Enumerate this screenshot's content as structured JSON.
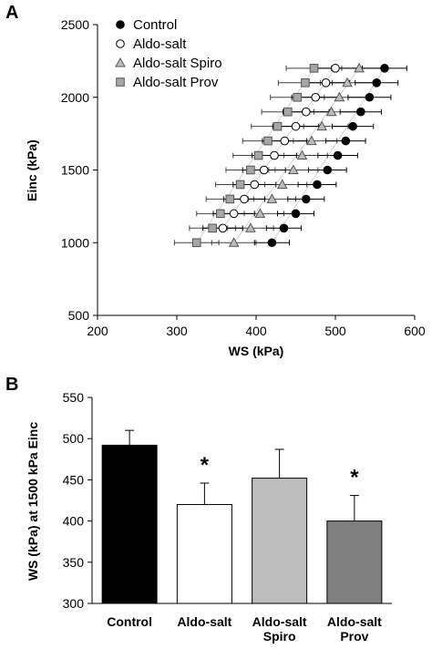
{
  "panel_a_label": "A",
  "panel_b_label": "B",
  "chart_data": [
    {
      "type": "scatter",
      "xlabel": "WS (kPa)",
      "ylabel": "Einc (kPa)",
      "xlim": [
        200,
        600
      ],
      "ylim": [
        500,
        2500
      ],
      "xticks": [
        "200",
        "300",
        "400",
        "500",
        "600"
      ],
      "yticks": [
        "500",
        "1000",
        "1500",
        "2000",
        "2500"
      ],
      "legend_position": "top-left",
      "x_error_bars": true,
      "series": [
        {
          "name": "Control",
          "marker": "filled-circle",
          "color": "#000000",
          "points": [
            [
              420,
              1000
            ],
            [
              435,
              1100
            ],
            [
              450,
              1200
            ],
            [
              463,
              1300
            ],
            [
              477,
              1400
            ],
            [
              490,
              1500
            ],
            [
              503,
              1600
            ],
            [
              513,
              1700
            ],
            [
              522,
              1800
            ],
            [
              532,
              1900
            ],
            [
              543,
              2000
            ],
            [
              552,
              2100
            ],
            [
              562,
              2200
            ]
          ],
          "x_error": [
            22,
            22,
            23,
            23,
            24,
            24,
            25,
            25,
            26,
            26,
            27,
            27,
            28
          ]
        },
        {
          "name": "Aldo-salt",
          "marker": "open-circle",
          "color": "#ffffff",
          "points": [
            [
              358,
              1100
            ],
            [
              372,
              1200
            ],
            [
              385,
              1300
            ],
            [
              398,
              1400
            ],
            [
              410,
              1500
            ],
            [
              423,
              1600
            ],
            [
              436,
              1700
            ],
            [
              450,
              1800
            ],
            [
              463,
              1900
            ],
            [
              475,
              2000
            ],
            [
              488,
              2100
            ],
            [
              500,
              2200
            ]
          ],
          "x_error": [
            25,
            26,
            26,
            27,
            27,
            28,
            28,
            29,
            29,
            30,
            30,
            31
          ]
        },
        {
          "name": "Aldo-salt Spiro",
          "marker": "triangle",
          "color": "#bcbcbc",
          "points": [
            [
              372,
              1000
            ],
            [
              393,
              1100
            ],
            [
              405,
              1200
            ],
            [
              420,
              1300
            ],
            [
              433,
              1400
            ],
            [
              447,
              1500
            ],
            [
              458,
              1600
            ],
            [
              470,
              1700
            ],
            [
              483,
              1800
            ],
            [
              495,
              1900
            ],
            [
              505,
              2000
            ],
            [
              515,
              2100
            ],
            [
              530,
              2200
            ]
          ],
          "x_error": [
            28,
            29,
            30,
            30,
            31,
            31,
            32,
            32,
            33,
            33,
            34,
            34,
            35
          ]
        },
        {
          "name": "Aldo-salt Prov",
          "marker": "square",
          "color": "#a6a6a6",
          "points": [
            [
              325,
              1000
            ],
            [
              345,
              1100
            ],
            [
              355,
              1200
            ],
            [
              367,
              1300
            ],
            [
              380,
              1400
            ],
            [
              393,
              1500
            ],
            [
              403,
              1600
            ],
            [
              415,
              1700
            ],
            [
              427,
              1800
            ],
            [
              440,
              1900
            ],
            [
              452,
              2000
            ],
            [
              462,
              2100
            ],
            [
              473,
              2200
            ]
          ],
          "x_error": [
            28,
            29,
            30,
            30,
            31,
            31,
            32,
            32,
            33,
            33,
            34,
            34,
            35
          ]
        }
      ]
    },
    {
      "type": "bar",
      "ylabel": "WS (kPa) at 1500 kPa Einc",
      "ylim": [
        300,
        550
      ],
      "yticks": [
        "300",
        "350",
        "400",
        "450",
        "500",
        "550"
      ],
      "categories": [
        "Control",
        "Aldo-salt",
        "Aldo-salt Spiro",
        "Aldo-salt Prov"
      ],
      "category_lines": [
        [
          "Control"
        ],
        [
          "Aldo-salt"
        ],
        [
          "Aldo-salt",
          "Spiro"
        ],
        [
          "Aldo-salt",
          "Prov"
        ]
      ],
      "values": [
        492,
        420,
        452,
        400
      ],
      "errors": [
        18,
        26,
        35,
        31
      ],
      "bar_colors": [
        "#000000",
        "#ffffff",
        "#bdbdbd",
        "#808080"
      ],
      "annotations": [
        "",
        "*",
        "",
        "*"
      ]
    }
  ]
}
